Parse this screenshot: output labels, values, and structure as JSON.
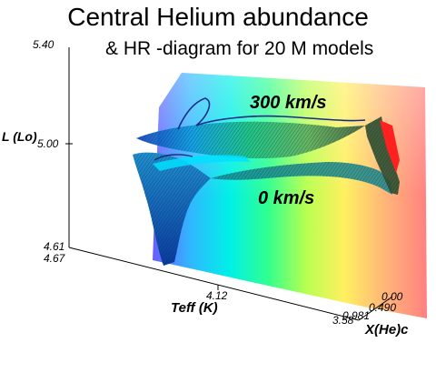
{
  "chart_data": {
    "type": "surface",
    "title": "Central Helium abundance",
    "subtitle": "& HR -diagram for 20 M models",
    "xlabel": "Teff (K)",
    "ylabel": "L (Lo)",
    "zlabel": "X(He)c",
    "x_ticks": [
      "4.67",
      "4.12",
      "3.58"
    ],
    "y_ticks": [
      "4.61",
      "5.00",
      "5.40"
    ],
    "z_ticks": [
      "0.00",
      "0.490",
      "0.981"
    ],
    "xlim": [
      4.67,
      3.58
    ],
    "ylim": [
      4.61,
      5.4
    ],
    "zlim": [
      0.0,
      0.981
    ],
    "colormap": [
      "#3344ff",
      "#00c8ff",
      "#00ffb0",
      "#80ff60",
      "#f0ff40",
      "#ffb060",
      "#ff7070"
    ],
    "series": [
      {
        "name": "300 km/s"
      },
      {
        "name": "0 km/s"
      }
    ]
  }
}
